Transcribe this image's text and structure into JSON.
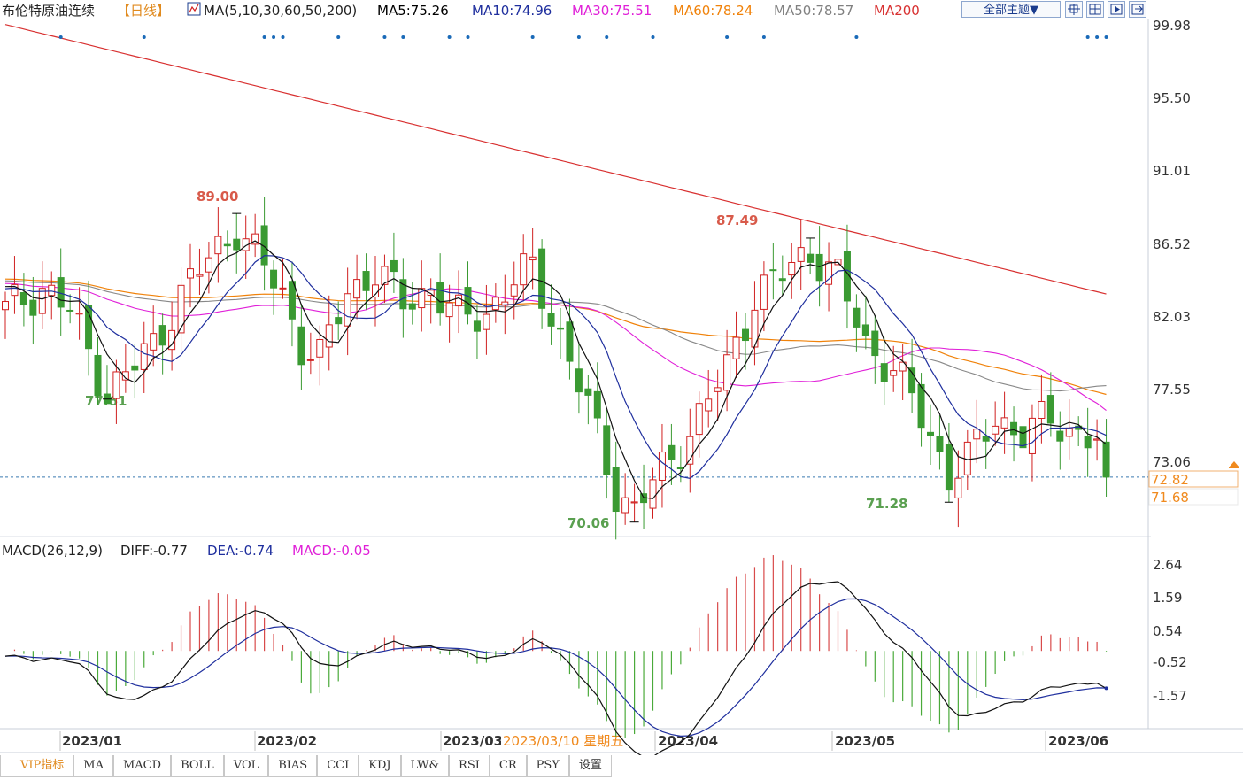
{
  "title": "布伦特原油连续",
  "period_tag": "【日线】",
  "header": {
    "ma_spec": "MA(5,10,30,60,50,200)",
    "ma_values": [
      {
        "label": "MA5:75.26",
        "color": "#000000"
      },
      {
        "label": "MA10:74.96",
        "color": "#1f2f9e"
      },
      {
        "label": "MA30:75.51",
        "color": "#e020d8"
      },
      {
        "label": "MA60:78.24",
        "color": "#f0820a"
      },
      {
        "label": "MA50:78.57",
        "color": "#808080"
      },
      {
        "label": "MA200",
        "color": "#d83030"
      }
    ],
    "theme_button": "全部主题▼",
    "tool_icons": [
      "crosshair-icon",
      "layout-icon",
      "play-icon",
      "export-icon"
    ]
  },
  "macd_header": {
    "label": "MACD(26,12,9)",
    "diff": "DIFF:-0.77",
    "dea": "DEA:-0.74",
    "macd": "MACD:-0.05"
  },
  "chart_data": {
    "type": "candlestick",
    "y_ticks": [
      "99.98",
      "95.50",
      "91.01",
      "86.52",
      "82.03",
      "77.55",
      "73.06"
    ],
    "macd_ticks": [
      "2.64",
      "1.59",
      "0.54",
      "-0.52",
      "-1.57"
    ],
    "x_labels": [
      "2023/01",
      "2023/02",
      "2023/03",
      "2023/04",
      "2023/05",
      "2023/06"
    ],
    "cursor_label": "2023/03/10 星期五",
    "price_tags": [
      "72.82",
      "71.68"
    ],
    "annotations": [
      {
        "text": "89.00",
        "value": 89.0,
        "type": "high"
      },
      {
        "text": "77.61",
        "value": 77.61,
        "type": "low"
      },
      {
        "text": "87.49",
        "value": 87.49,
        "type": "high"
      },
      {
        "text": "70.06",
        "value": 70.06,
        "type": "low"
      },
      {
        "text": "71.28",
        "value": 71.28,
        "type": "low"
      }
    ],
    "y_range": [
      69.5,
      100.8
    ],
    "macd_range": [
      -2.3,
      2.8
    ],
    "last_close": 72.82,
    "up_color": "#d02020",
    "down_color": "#3a9a32"
  },
  "tabs": [
    {
      "label": "VIP指标",
      "active": true
    },
    {
      "label": "MA"
    },
    {
      "label": "MACD"
    },
    {
      "label": "BOLL"
    },
    {
      "label": "VOL"
    },
    {
      "label": "BIAS"
    },
    {
      "label": "CCI"
    },
    {
      "label": "KDJ"
    },
    {
      "label": "LW&"
    },
    {
      "label": "RSI"
    },
    {
      "label": "CR"
    },
    {
      "label": "PSY"
    },
    {
      "label": "设置"
    }
  ]
}
